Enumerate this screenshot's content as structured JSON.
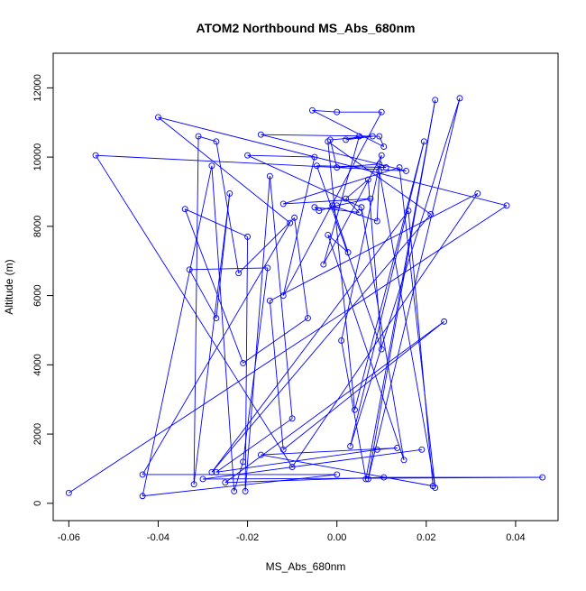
{
  "chart_data": {
    "type": "line",
    "title": "ATOM2 Northbound MS_Abs_680nm",
    "xlabel": "MS_Abs_680nm",
    "ylabel": "Altitude (m)",
    "xlim": [
      -0.0635,
      0.0495
    ],
    "ylim": [
      -500,
      13000
    ],
    "x_ticks": [
      -0.06,
      -0.04,
      -0.02,
      0.0,
      0.02,
      0.04
    ],
    "x_tick_labels": [
      "-0.06",
      "-0.04",
      "-0.02",
      "0.00",
      "0.02",
      "0.04"
    ],
    "y_ticks": [
      0,
      2000,
      4000,
      6000,
      8000,
      10000,
      12000
    ],
    "y_tick_labels": [
      "0",
      "2000",
      "4000",
      "6000",
      "8000",
      "10000",
      "12000"
    ],
    "grid": false,
    "legend": "none",
    "series": [
      {
        "color": "#0000ff",
        "marker": "open-circle",
        "points": [
          [
            -0.06,
            300
          ],
          [
            0.038,
            8600
          ],
          [
            -0.04,
            11150
          ],
          [
            -0.0105,
            8100
          ],
          [
            -0.0435,
            830
          ],
          [
            0.0,
            830
          ],
          [
            -0.0435,
            210
          ],
          [
            -0.028,
            9750
          ],
          [
            -0.023,
            350
          ],
          [
            -0.021,
            1200
          ],
          [
            -0.0155,
            6800
          ],
          [
            -0.033,
            6750
          ],
          [
            -0.027,
            5350
          ],
          [
            -0.024,
            8950
          ],
          [
            -0.032,
            550
          ],
          [
            -0.031,
            10600
          ],
          [
            -0.027,
            10450
          ],
          [
            -0.022,
            6650
          ],
          [
            -0.0095,
            8250
          ],
          [
            -0.0065,
            5350
          ],
          [
            -0.021,
            4050
          ],
          [
            -0.034,
            8500
          ],
          [
            -0.02,
            7700
          ],
          [
            -0.0205,
            350
          ],
          [
            -0.015,
            9450
          ],
          [
            -0.01,
            2450
          ],
          [
            -0.027,
            900
          ],
          [
            0.009,
            1550
          ],
          [
            0.0135,
            1600
          ],
          [
            -0.017,
            1400
          ],
          [
            0.0215,
            500
          ],
          [
            0.016,
            8450
          ],
          [
            -0.028,
            900
          ],
          [
            0.021,
            8350
          ],
          [
            -0.002,
            10450
          ],
          [
            0.004,
            2700
          ],
          [
            0.0195,
            10450
          ],
          [
            0.003,
            1650
          ],
          [
            0.0275,
            11700
          ],
          [
            0.007,
            700
          ],
          [
            0.022,
            11650
          ],
          [
            0.0065,
            700
          ],
          [
            0.001,
            4700
          ],
          [
            0.01,
            10050
          ],
          [
            -0.003,
            6900
          ],
          [
            0.005,
            10600
          ],
          [
            0.002,
            10500
          ],
          [
            0.008,
            10600
          ],
          [
            -0.0015,
            10500
          ],
          [
            0.0,
            9700
          ],
          [
            0.0095,
            9800
          ],
          [
            0.011,
            9700
          ],
          [
            -0.0045,
            9750
          ],
          [
            0.01,
            4450
          ],
          [
            0.007,
            9350
          ],
          [
            0.002,
            8800
          ],
          [
            0.005,
            8400
          ],
          [
            -0.005,
            8550
          ],
          [
            -0.004,
            8450
          ],
          [
            0.0,
            8600
          ],
          [
            0.0075,
            8800
          ],
          [
            -0.012,
            8650
          ],
          [
            0.014,
            9700
          ],
          [
            0.022,
            450
          ],
          [
            0.0095,
            9600
          ],
          [
            0.009,
            8150
          ],
          [
            -0.001,
            8600
          ],
          [
            0.0025,
            7250
          ],
          [
            -0.002,
            7750
          ],
          [
            0.015,
            1250
          ],
          [
            0.0055,
            8550
          ],
          [
            -0.02,
            10050
          ],
          [
            -0.005,
            10000
          ],
          [
            -0.012,
            6000
          ],
          [
            0.01,
            11300
          ],
          [
            0.0,
            11300
          ],
          [
            -0.0055,
            11350
          ],
          [
            0.0105,
            10300
          ],
          [
            0.0095,
            10600
          ],
          [
            -0.017,
            10650
          ],
          [
            0.0155,
            9600
          ],
          [
            -0.054,
            10050
          ],
          [
            -0.01,
            1050
          ],
          [
            0.0315,
            8950
          ],
          [
            -0.015,
            5850
          ],
          [
            -0.012,
            1550
          ],
          [
            0.024,
            5250
          ],
          [
            -0.025,
            600
          ],
          [
            0.0105,
            750
          ],
          [
            0.046,
            750
          ],
          [
            -0.03,
            700
          ],
          [
            0.019,
            1550
          ]
        ]
      }
    ]
  }
}
